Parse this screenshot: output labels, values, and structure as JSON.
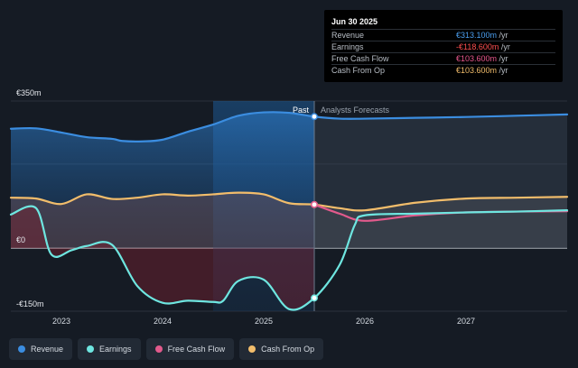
{
  "tooltip": {
    "date": "Jun 30 2025",
    "rows": [
      {
        "label": "Revenue",
        "value": "€313.100m",
        "unit": " /yr",
        "color": "#4b9ff0"
      },
      {
        "label": "Earnings",
        "value": "-€118.600m",
        "unit": " /yr",
        "color": "#ff4f4f"
      },
      {
        "label": "Free Cash Flow",
        "value": "€103.600m",
        "unit": " /yr",
        "color": "#e8588e"
      },
      {
        "label": "Cash From Op",
        "value": "€103.600m",
        "unit": " /yr",
        "color": "#f2bd6b"
      }
    ]
  },
  "legend": [
    {
      "label": "Revenue",
      "color": "#3b8de0"
    },
    {
      "label": "Earnings",
      "color": "#6ee6e0"
    },
    {
      "label": "Free Cash Flow",
      "color": "#e25a8c"
    },
    {
      "label": "Cash From Op",
      "color": "#f2bd6b"
    }
  ],
  "chart_data": {
    "type": "line",
    "ylim": [
      -150,
      350
    ],
    "y_tick_labels": [
      {
        "label": "€350m",
        "value": 350
      },
      {
        "label": "€0",
        "value": 0
      },
      {
        "label": "-€150m",
        "value": -150
      }
    ],
    "x_tick_labels": [
      "2023",
      "2024",
      "2025",
      "2026",
      "2027"
    ],
    "x_ticks_year": [
      2023,
      2024,
      2025,
      2026,
      2027
    ],
    "xlim": [
      2022.5,
      2028.0
    ],
    "past_label": "Past",
    "forecast_label": "Analysts Forecasts",
    "divider_x": 2025.5,
    "highlight_range": [
      2024.5,
      2025.5
    ],
    "series": [
      {
        "name": "Revenue",
        "color": "#3b8de0",
        "points": [
          [
            2022.5,
            284
          ],
          [
            2022.75,
            285
          ],
          [
            2023.0,
            275
          ],
          [
            2023.25,
            264
          ],
          [
            2023.5,
            260
          ],
          [
            2023.6,
            255
          ],
          [
            2023.8,
            254
          ],
          [
            2024.0,
            258
          ],
          [
            2024.25,
            277
          ],
          [
            2024.5,
            294
          ],
          [
            2024.75,
            315
          ],
          [
            2025.0,
            323
          ],
          [
            2025.25,
            322
          ],
          [
            2025.5,
            313
          ],
          [
            2025.75,
            308
          ],
          [
            2026.0,
            308
          ],
          [
            2026.5,
            310
          ],
          [
            2027.0,
            312
          ],
          [
            2027.5,
            315
          ],
          [
            2028.0,
            318
          ]
        ]
      },
      {
        "name": "Earnings",
        "color": "#6ee6e0",
        "points": [
          [
            2022.5,
            80
          ],
          [
            2022.75,
            95
          ],
          [
            2022.9,
            -15
          ],
          [
            2023.1,
            -5
          ],
          [
            2023.25,
            5
          ],
          [
            2023.5,
            8
          ],
          [
            2023.75,
            -90
          ],
          [
            2024.0,
            -130
          ],
          [
            2024.25,
            -125
          ],
          [
            2024.5,
            -128
          ],
          [
            2024.6,
            -125
          ],
          [
            2024.75,
            -78
          ],
          [
            2025.0,
            -75
          ],
          [
            2025.25,
            -145
          ],
          [
            2025.5,
            -118.6
          ],
          [
            2025.75,
            -40
          ],
          [
            2025.9,
            55
          ],
          [
            2026.0,
            78
          ],
          [
            2026.5,
            82
          ],
          [
            2027.0,
            85
          ],
          [
            2027.5,
            87
          ],
          [
            2028.0,
            90
          ]
        ]
      },
      {
        "name": "Free Cash Flow",
        "color": "#e25a8c",
        "points": [
          [
            2025.5,
            103.6
          ],
          [
            2025.75,
            82
          ],
          [
            2026.0,
            65
          ],
          [
            2026.5,
            78
          ],
          [
            2027.0,
            85
          ],
          [
            2027.5,
            87
          ],
          [
            2028.0,
            88
          ]
        ]
      },
      {
        "name": "Cash From Op",
        "color": "#f2bd6b",
        "points": [
          [
            2022.5,
            120
          ],
          [
            2022.75,
            118
          ],
          [
            2023.0,
            105
          ],
          [
            2023.25,
            128
          ],
          [
            2023.5,
            117
          ],
          [
            2023.75,
            120
          ],
          [
            2024.0,
            128
          ],
          [
            2024.25,
            125
          ],
          [
            2024.5,
            128
          ],
          [
            2024.75,
            132
          ],
          [
            2025.0,
            128
          ],
          [
            2025.25,
            107
          ],
          [
            2025.5,
            103.6
          ],
          [
            2025.75,
            95
          ],
          [
            2026.0,
            90
          ],
          [
            2026.5,
            108
          ],
          [
            2027.0,
            118
          ],
          [
            2027.5,
            120
          ],
          [
            2028.0,
            122
          ]
        ]
      }
    ]
  }
}
